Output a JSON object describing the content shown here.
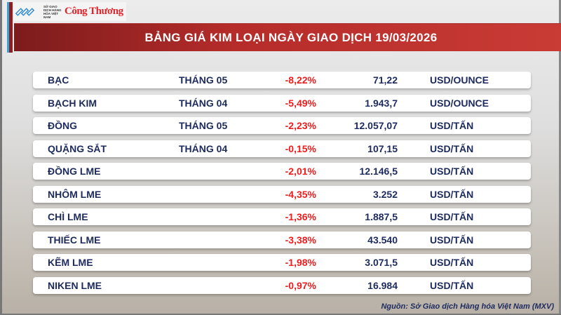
{
  "logo": {
    "exchange_text": "SỞ GIAO DỊCH HÀNG HÓA VIỆT NAM",
    "brand": "Công Thương"
  },
  "title": "BẢNG GIÁ KIM LOẠI NGÀY GIAO DỊCH 19/03/2026",
  "rows": [
    {
      "name": "BẠC",
      "month": "THÁNG 05",
      "change": "-8,22%",
      "price": "71,22",
      "unit": "USD/OUNCE"
    },
    {
      "name": "BẠCH KIM",
      "month": "THÁNG 04",
      "change": "-5,49%",
      "price": "1.943,7",
      "unit": "USD/OUNCE"
    },
    {
      "name": "ĐỒNG",
      "month": "THÁNG 05",
      "change": "-2,23%",
      "price": "12.057,07",
      "unit": "USD/TẤN"
    },
    {
      "name": "QUẶNG SẮT",
      "month": "THÁNG 04",
      "change": "-0,15%",
      "price": "107,15",
      "unit": "USD/TẤN"
    },
    {
      "name": "ĐỒNG LME",
      "month": "",
      "change": "-2,01%",
      "price": "12.146,5",
      "unit": "USD/TẤN"
    },
    {
      "name": "NHÔM LME",
      "month": "",
      "change": "-4,35%",
      "price": "3.252",
      "unit": "USD/TẤN"
    },
    {
      "name": "CHÌ LME",
      "month": "",
      "change": "-1,36%",
      "price": "1.887,5",
      "unit": "USD/TẤN"
    },
    {
      "name": "THIẾC LME",
      "month": "",
      "change": "-3,38%",
      "price": "43.540",
      "unit": "USD/TẤN"
    },
    {
      "name": "KẼM LME",
      "month": "",
      "change": "-1,98%",
      "price": "3.071,5",
      "unit": "USD/TẤN"
    },
    {
      "name": "NIKEN LME",
      "month": "",
      "change": "-0,97%",
      "price": "16.984",
      "unit": "USD/TẤN"
    }
  ],
  "source": "Nguồn: Sở Giao dịch Hàng hóa Việt Nam (MXV)",
  "colors": {
    "banner": "#b52c2a",
    "negative": "#ee1c1c",
    "text": "#1c2a5e"
  }
}
